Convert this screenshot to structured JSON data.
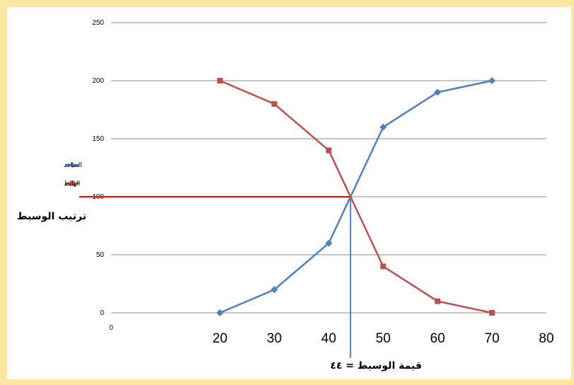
{
  "chart_data": {
    "type": "line",
    "x": [
      20,
      30,
      40,
      50,
      60,
      70
    ],
    "series": [
      {
        "name": "الصاعد",
        "values": [
          0,
          20,
          60,
          160,
          190,
          200
        ],
        "color": "#4f81bd",
        "marker": "diamond"
      },
      {
        "name": "الهابط",
        "values": [
          200,
          180,
          140,
          40,
          10,
          0
        ],
        "color": "#c0504d",
        "marker": "square"
      }
    ],
    "xlim": [
      0,
      80
    ],
    "ylim": [
      0,
      250
    ],
    "x_ticks": [
      "20",
      "30",
      "40",
      "50",
      "60",
      "70",
      "80"
    ],
    "x_origin_label": "0",
    "y_ticks": [
      "0",
      "50",
      "100",
      "150",
      "200",
      "250"
    ],
    "grid": "horizontal",
    "legend_position": "left",
    "annotations": {
      "median_rank_label": "ترتيب الوسيط",
      "median_rank_value": 100,
      "median_value_label": "قيمة الوسيط = ٤٤",
      "median_value": 44,
      "rank_line_color": "#ff0000",
      "value_line_color": "#4f81bd"
    }
  }
}
